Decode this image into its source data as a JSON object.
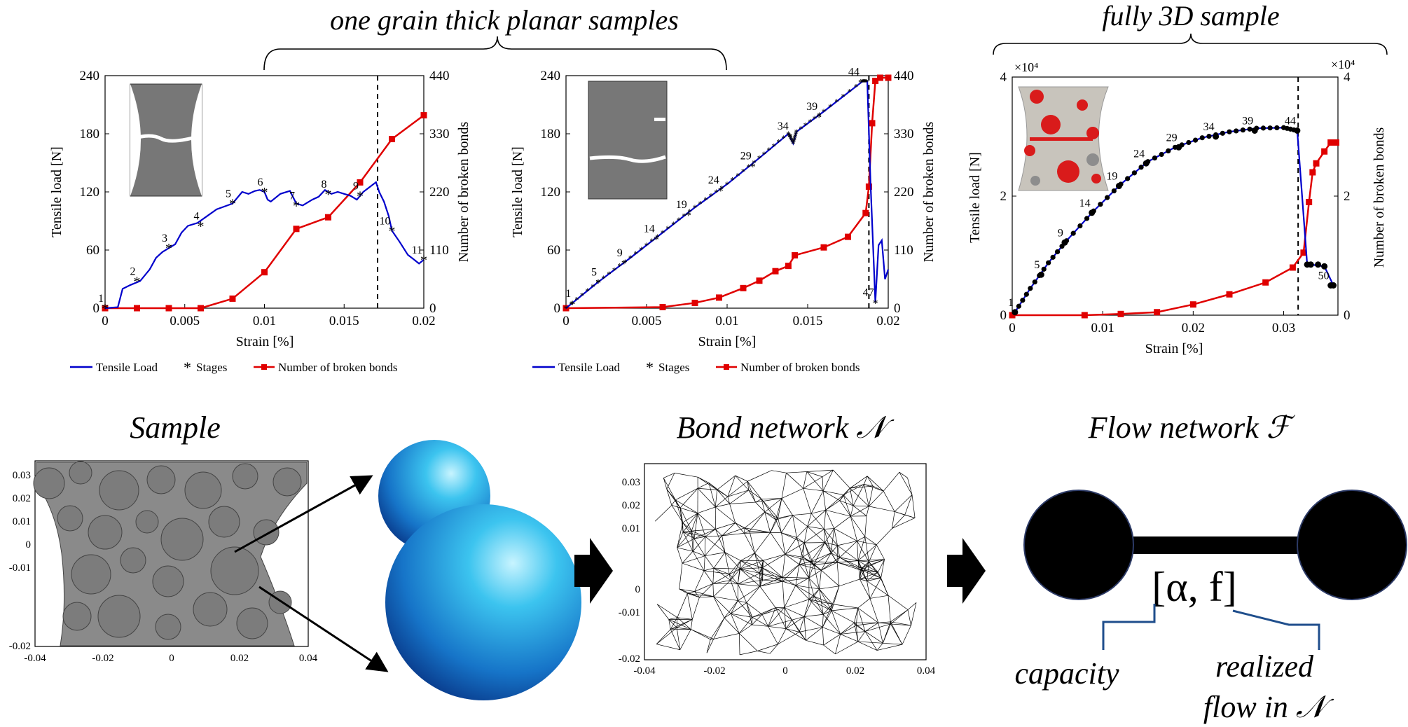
{
  "headers": {
    "planar": "one grain thick planar samples",
    "full3d": "fully 3D sample"
  },
  "legend": {
    "tensile": "Tensile Load",
    "stages": "Stages",
    "bonds": "Number of broken bonds"
  },
  "exponent_label": "×10⁴",
  "bottom": {
    "sample_title": "Sample",
    "bond_title": "Bond network 𝒩",
    "flow_title": "Flow network ℱ",
    "edge_label": "[α, f]",
    "capacity": "capacity",
    "realized_1": "realized",
    "realized_2": "flow in 𝒩"
  },
  "chart_data": [
    {
      "type": "line",
      "title": "",
      "xlabel": "Strain [%]",
      "ylabel": "Tensile load [N]",
      "y2label": "Number of broken bonds",
      "xlim": [
        0,
        0.02
      ],
      "ylim": [
        0,
        240
      ],
      "y2lim": [
        0,
        440
      ],
      "xticks": [
        "0",
        "0.005",
        "0.01",
        "0.015",
        "0.02"
      ],
      "yticks": [
        "0",
        "60",
        "120",
        "180",
        "240"
      ],
      "y2ticks": [
        "0",
        "110",
        "220",
        "330",
        "440"
      ],
      "fracture_strain": 0.0171,
      "series": [
        {
          "name": "Tensile Load",
          "axis": "left",
          "color": "#0000cc",
          "x": [
            0,
            0.0008,
            0.0011,
            0.0016,
            0.0022,
            0.0028,
            0.0032,
            0.0036,
            0.004,
            0.0044,
            0.0048,
            0.0052,
            0.0058,
            0.0064,
            0.007,
            0.0075,
            0.008,
            0.0086,
            0.009,
            0.0094,
            0.0097,
            0.01,
            0.0102,
            0.0104,
            0.011,
            0.0116,
            0.012,
            0.0124,
            0.013,
            0.0134,
            0.0138,
            0.0142,
            0.0146,
            0.015,
            0.0154,
            0.0158,
            0.0162,
            0.0166,
            0.017,
            0.0172,
            0.0175,
            0.0178,
            0.018,
            0.0185,
            0.019,
            0.0194,
            0.0197,
            0.02
          ],
          "y": [
            0,
            1,
            20,
            24,
            28,
            40,
            52,
            58,
            62,
            66,
            78,
            85,
            88,
            95,
            102,
            105,
            108,
            120,
            118,
            121,
            122,
            120,
            112,
            110,
            118,
            121,
            108,
            106,
            112,
            115,
            122,
            118,
            120,
            118,
            116,
            112,
            120,
            125,
            130,
            120,
            110,
            95,
            80,
            68,
            55,
            50,
            46,
            50
          ]
        },
        {
          "name": "Stages",
          "axis": "left",
          "color": "#000000",
          "labels": [
            "1",
            "2",
            "3",
            "4",
            "5",
            "6",
            "7",
            "8",
            "9",
            "10",
            "11"
          ],
          "x": [
            0,
            0.002,
            0.004,
            0.006,
            0.008,
            0.01,
            0.012,
            0.014,
            0.016,
            0.018,
            0.02
          ],
          "y": [
            0,
            28,
            62,
            85,
            108,
            120,
            106,
            118,
            116,
            80,
            50
          ]
        },
        {
          "name": "Number of broken bonds",
          "axis": "right",
          "color": "#e00000",
          "x": [
            0,
            0.002,
            0.004,
            0.006,
            0.008,
            0.01,
            0.012,
            0.014,
            0.016,
            0.018,
            0.02
          ],
          "y": [
            0,
            0,
            0,
            0,
            18,
            68,
            150,
            172,
            238,
            320,
            365
          ]
        }
      ]
    },
    {
      "type": "line",
      "title": "",
      "xlabel": "Strain [%]",
      "ylabel": "Tensile load [N]",
      "y2label": "Number of broken bonds",
      "xlim": [
        0,
        0.02
      ],
      "ylim": [
        0,
        240
      ],
      "y2lim": [
        0,
        440
      ],
      "xticks": [
        "0",
        "0.005",
        "0.01",
        "0.015",
        "0.02"
      ],
      "yticks": [
        "0",
        "60",
        "120",
        "180",
        "240"
      ],
      "y2ticks": [
        "0",
        "110",
        "220",
        "330",
        "440"
      ],
      "fracture_strain": 0.0188,
      "series": [
        {
          "name": "Tensile Load",
          "axis": "left",
          "color": "#0000cc",
          "x": [
            0,
            0.002,
            0.004,
            0.006,
            0.008,
            0.01,
            0.012,
            0.0138,
            0.0141,
            0.0143,
            0.016,
            0.0184,
            0.0187,
            0.0189,
            0.0192,
            0.0194,
            0.0196,
            0.0198,
            0.02
          ],
          "y": [
            0,
            27,
            52,
            78,
            104,
            128,
            155,
            180,
            170,
            182,
            203,
            234,
            234,
            130,
            6,
            65,
            70,
            30,
            40
          ]
        },
        {
          "name": "Stages",
          "axis": "left",
          "color": "#000000",
          "labels": [
            "1",
            "5",
            "9",
            "14",
            "19",
            "24",
            "29",
            "34",
            "39",
            "44",
            "47"
          ],
          "x": [
            0.0004,
            0.002,
            0.0036,
            0.0056,
            0.0076,
            0.0096,
            0.0116,
            0.0139,
            0.0157,
            0.0183,
            0.0192
          ],
          "y": [
            5,
            27,
            47,
            72,
            97,
            122,
            147,
            178,
            198,
            234,
            6
          ]
        },
        {
          "name": "Number of broken bonds",
          "axis": "right",
          "color": "#e00000",
          "x": [
            0,
            0.006,
            0.008,
            0.0095,
            0.011,
            0.012,
            0.013,
            0.0138,
            0.0142,
            0.016,
            0.0175,
            0.0186,
            0.0188,
            0.019,
            0.0192,
            0.0195,
            0.02
          ],
          "y": [
            0,
            2,
            10,
            20,
            38,
            52,
            70,
            80,
            100,
            115,
            135,
            180,
            230,
            350,
            430,
            436,
            436
          ]
        }
      ]
    },
    {
      "type": "line",
      "title": "",
      "xlabel": "Strain [%]",
      "ylabel": "Tensile load [N]",
      "y2label": "Number of broken bonds",
      "xlim": [
        0,
        0.036
      ],
      "ylim": [
        0,
        4
      ],
      "y2lim": [
        0,
        4
      ],
      "exponent": "×10⁴",
      "xticks": [
        "0",
        "0.01",
        "0.02",
        "0.03"
      ],
      "yticks": [
        "0",
        "2",
        "4"
      ],
      "y2ticks": [
        "0",
        "2",
        "4"
      ],
      "fracture_strain": 0.0316,
      "series": [
        {
          "name": "Tensile Load",
          "axis": "left",
          "color": "#0000cc",
          "x": [
            0.0003,
            0.002,
            0.004,
            0.006,
            0.009,
            0.012,
            0.015,
            0.018,
            0.021,
            0.024,
            0.027,
            0.03,
            0.0315,
            0.0326,
            0.033,
            0.0345,
            0.0355
          ],
          "y": [
            0.05,
            0.45,
            0.88,
            1.25,
            1.75,
            2.2,
            2.58,
            2.82,
            2.98,
            3.08,
            3.14,
            3.15,
            3.1,
            0.85,
            0.85,
            0.82,
            0.5
          ]
        },
        {
          "name": "Stages",
          "axis": "left",
          "color": "#000000",
          "labels": [
            "1",
            "5",
            "9",
            "14",
            "19",
            "24",
            "29",
            "34",
            "39",
            "44",
            "50"
          ],
          "x": [
            0.0003,
            0.0032,
            0.0058,
            0.0088,
            0.0118,
            0.0148,
            0.0184,
            0.0225,
            0.0268,
            0.0315,
            0.0352
          ],
          "y": [
            0.05,
            0.68,
            1.22,
            1.72,
            2.17,
            2.55,
            2.82,
            3.0,
            3.1,
            3.1,
            0.5
          ]
        },
        {
          "name": "Number of broken bonds",
          "axis": "right",
          "color": "#e00000",
          "x": [
            0,
            0.008,
            0.012,
            0.016,
            0.02,
            0.024,
            0.028,
            0.031,
            0.0322,
            0.0328,
            0.0332,
            0.0336,
            0.0345,
            0.0352,
            0.0358
          ],
          "y": [
            0,
            0,
            0.02,
            0.05,
            0.18,
            0.35,
            0.55,
            0.8,
            1.05,
            1.9,
            2.4,
            2.55,
            2.75,
            2.9,
            2.9
          ]
        }
      ]
    }
  ]
}
